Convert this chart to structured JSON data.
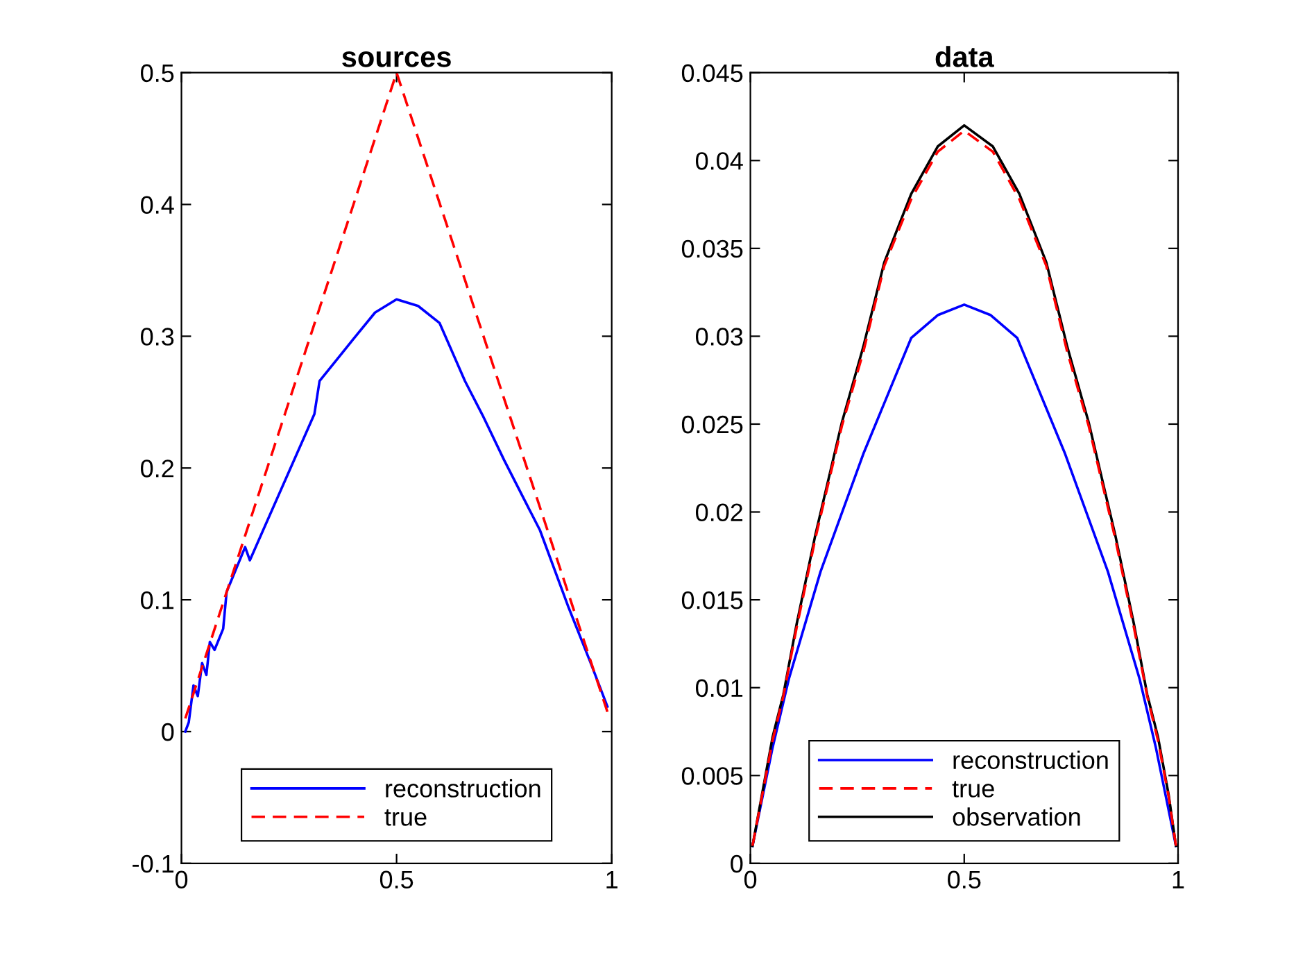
{
  "chart_data": [
    {
      "type": "line",
      "title": "sources",
      "xlim": [
        0,
        1
      ],
      "ylim": [
        -0.1,
        0.5
      ],
      "xticks": [
        0,
        0.5,
        1
      ],
      "yticks": [
        -0.1,
        0,
        0.1,
        0.2,
        0.3,
        0.4,
        0.5
      ],
      "grid": false,
      "legend": "bottom",
      "series": [
        {
          "name": "reconstruction",
          "color": "#0000ff",
          "line_style": "solid",
          "x": [
            0.009,
            0.017,
            0.028,
            0.038,
            0.048,
            0.058,
            0.066,
            0.077,
            0.097,
            0.105,
            0.148,
            0.159,
            0.309,
            0.321,
            0.4,
            0.45,
            0.5,
            0.55,
            0.6,
            0.659,
            0.7,
            0.75,
            0.8,
            0.833,
            0.9,
            0.95,
            0.99
          ],
          "values": [
            0.0,
            0.007,
            0.035,
            0.027,
            0.052,
            0.043,
            0.068,
            0.062,
            0.078,
            0.106,
            0.14,
            0.13,
            0.241,
            0.266,
            0.298,
            0.318,
            0.328,
            0.323,
            0.31,
            0.266,
            0.24,
            0.206,
            0.174,
            0.153,
            0.094,
            0.053,
            0.019
          ]
        },
        {
          "name": "true",
          "color": "#ff0000",
          "line_style": "dashed",
          "x": [
            0.009,
            0.5,
            0.99
          ],
          "values": [
            0.01,
            0.5,
            0.015
          ]
        }
      ]
    },
    {
      "type": "line",
      "title": "data",
      "xlim": [
        0,
        1
      ],
      "ylim": [
        0,
        0.045
      ],
      "xticks": [
        0,
        0.5,
        1
      ],
      "yticks": [
        0,
        0.005,
        0.01,
        0.015,
        0.02,
        0.025,
        0.03,
        0.035,
        0.04,
        0.045
      ],
      "grid": false,
      "legend": "bottom",
      "series": [
        {
          "name": "reconstruction",
          "color": "#0000ff",
          "line_style": "solid",
          "x": [
            0.005,
            0.052,
            0.09,
            0.164,
            0.264,
            0.376,
            0.438,
            0.5,
            0.562,
            0.624,
            0.736,
            0.836,
            0.91,
            0.948,
            0.995
          ],
          "values": [
            0.001,
            0.0066,
            0.0105,
            0.0166,
            0.0233,
            0.0299,
            0.0312,
            0.0318,
            0.0312,
            0.0299,
            0.0233,
            0.0166,
            0.0105,
            0.0066,
            0.001
          ]
        },
        {
          "name": "true",
          "color": "#ff0000",
          "line_style": "dashed",
          "x": [
            0.005,
            0.027,
            0.052,
            0.077,
            0.108,
            0.152,
            0.214,
            0.264,
            0.313,
            0.376,
            0.438,
            0.5,
            0.567,
            0.629,
            0.692,
            0.741,
            0.791,
            0.853,
            0.897,
            0.928,
            0.953,
            0.978,
            0.995
          ],
          "values": [
            0.001,
            0.0038,
            0.007,
            0.0095,
            0.0134,
            0.0185,
            0.0249,
            0.0291,
            0.034,
            0.0378,
            0.0405,
            0.0417,
            0.0405,
            0.0378,
            0.034,
            0.0291,
            0.0249,
            0.0185,
            0.0134,
            0.0095,
            0.007,
            0.0038,
            0.001
          ]
        },
        {
          "name": "observation",
          "color": "#000000",
          "line_style": "solid",
          "x": [
            0.005,
            0.027,
            0.052,
            0.077,
            0.108,
            0.152,
            0.214,
            0.264,
            0.313,
            0.376,
            0.438,
            0.5,
            0.567,
            0.629,
            0.692,
            0.741,
            0.791,
            0.853,
            0.897,
            0.928,
            0.953,
            0.978,
            0.995
          ],
          "values": [
            0.001,
            0.0039,
            0.0072,
            0.0096,
            0.0136,
            0.0187,
            0.0251,
            0.0294,
            0.0342,
            0.0381,
            0.0408,
            0.042,
            0.0408,
            0.0381,
            0.0342,
            0.0294,
            0.0251,
            0.0187,
            0.0136,
            0.0096,
            0.0072,
            0.0039,
            0.001
          ]
        }
      ]
    }
  ]
}
